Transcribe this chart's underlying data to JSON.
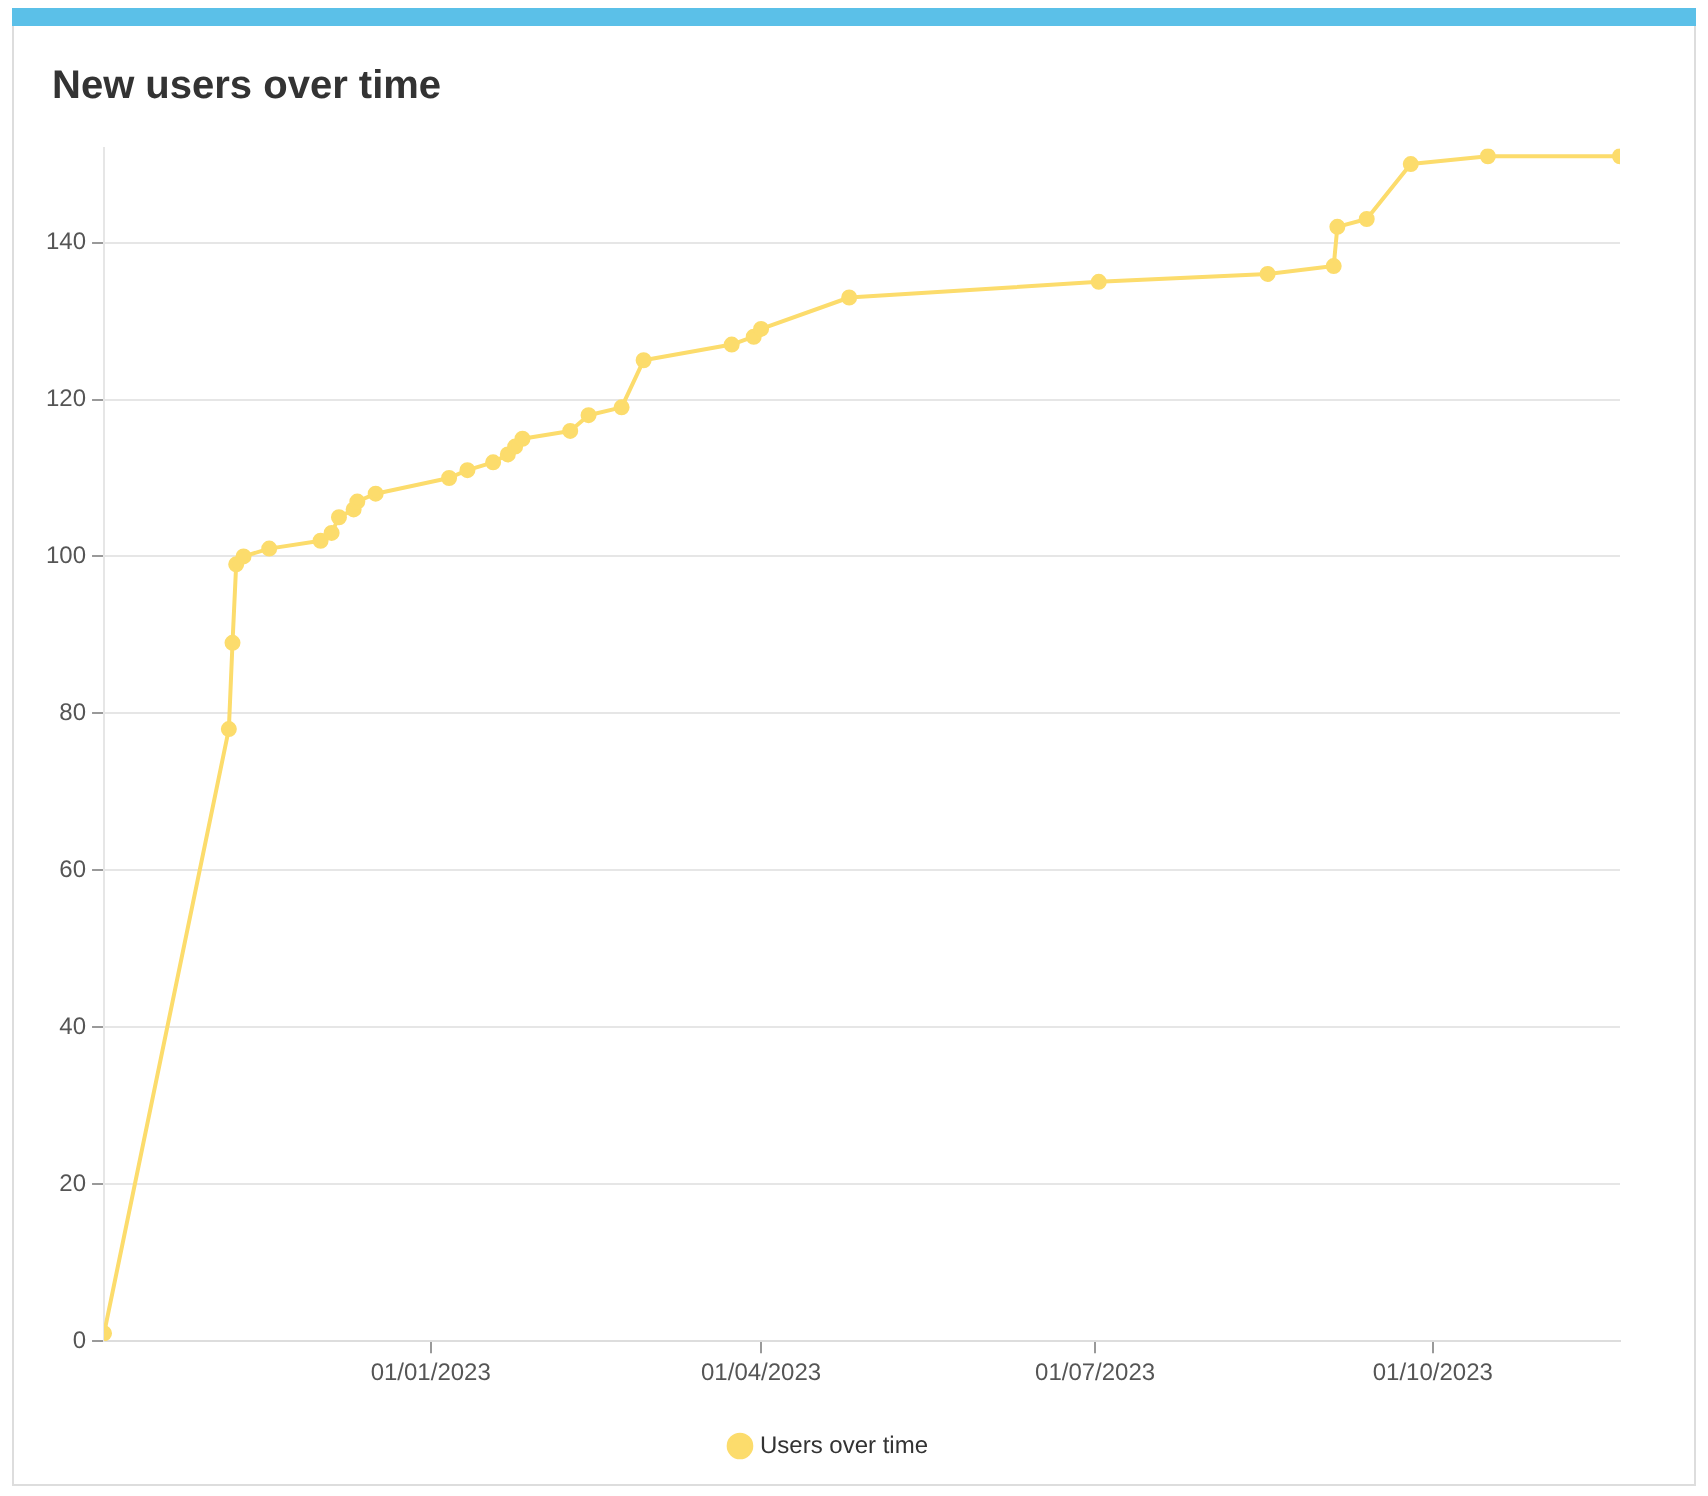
{
  "chart_data": {
    "type": "line",
    "title": "New users over time",
    "x": [
      "2022-10-04",
      "2022-11-07",
      "2022-11-08",
      "2022-11-09",
      "2022-11-11",
      "2022-11-18",
      "2022-12-02",
      "2022-12-05",
      "2022-12-07",
      "2022-12-11",
      "2022-12-12",
      "2022-12-17",
      "2023-01-06",
      "2023-01-11",
      "2023-01-18",
      "2023-01-22",
      "2023-01-24",
      "2023-01-26",
      "2023-02-08",
      "2023-02-13",
      "2023-02-22",
      "2023-02-28",
      "2023-03-24",
      "2023-03-30",
      "2023-04-01",
      "2023-04-25",
      "2023-07-02",
      "2023-08-17",
      "2023-09-04",
      "2023-09-05",
      "2023-09-13",
      "2023-09-25",
      "2023-10-16",
      "2023-11-21"
    ],
    "series": [
      {
        "name": "Users over time",
        "color": "#fcdc6c",
        "values": [
          1,
          78,
          89,
          99,
          100,
          101,
          102,
          103,
          105,
          106,
          107,
          108,
          110,
          111,
          112,
          113,
          114,
          115,
          116,
          118,
          119,
          125,
          127,
          128,
          129,
          133,
          135,
          136,
          137,
          142,
          143,
          150,
          151,
          151
        ]
      }
    ],
    "xlim": [
      "2022-10-04",
      "2023-11-21"
    ],
    "xticks": [
      {
        "value": "2023-01-01",
        "label": "01/01/2023"
      },
      {
        "value": "2023-04-01",
        "label": "01/04/2023"
      },
      {
        "value": "2023-07-01",
        "label": "01/07/2023"
      },
      {
        "value": "2023-10-01",
        "label": "01/10/2023"
      }
    ],
    "ylim": [
      0,
      152
    ],
    "yticks": [
      0,
      20,
      40,
      60,
      80,
      100,
      120,
      140
    ],
    "grid": "y",
    "legend": "bottom",
    "marker": "circle",
    "line_style": "solid"
  }
}
